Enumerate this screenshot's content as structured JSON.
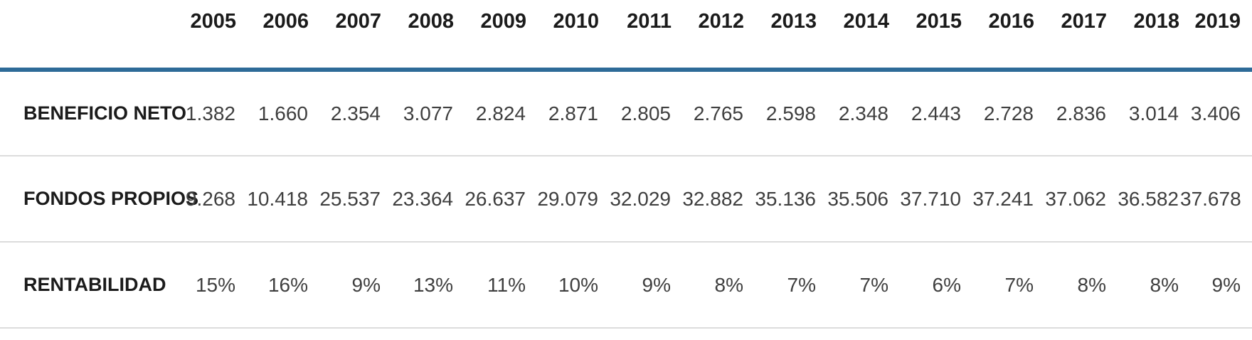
{
  "table": {
    "header": {
      "corner": "",
      "years": [
        "2005",
        "2006",
        "2007",
        "2008",
        "2009",
        "2010",
        "2011",
        "2012",
        "2013",
        "2014",
        "2015",
        "2016",
        "2017",
        "2018",
        "2019"
      ]
    },
    "rows": [
      {
        "label": "BENEFICIO NETO",
        "values": [
          "1.382",
          "1.660",
          "2.354",
          "3.077",
          "2.824",
          "2.871",
          "2.805",
          "2.765",
          "2.598",
          "2.348",
          "2.443",
          "2.728",
          "2.836",
          "3.014",
          "3.406"
        ]
      },
      {
        "label": "FONDOS PROPIOS",
        "values": [
          "9.268",
          "10.418",
          "25.537",
          "23.364",
          "26.637",
          "29.079",
          "32.029",
          "32.882",
          "35.136",
          "35.506",
          "37.710",
          "37.241",
          "37.062",
          "36.582",
          "37.678"
        ]
      },
      {
        "label": "RENTABILIDAD",
        "values": [
          "15%",
          "16%",
          "9%",
          "13%",
          "11%",
          "10%",
          "9%",
          "8%",
          "7%",
          "7%",
          "6%",
          "7%",
          "8%",
          "8%",
          "9%"
        ]
      }
    ]
  },
  "colors": {
    "accent_rule": "#2e6b98",
    "row_divider": "#dcdcdc",
    "header_text": "#1b1b1b",
    "value_text": "#3f3f3f",
    "background": "#ffffff"
  },
  "chart_data": {
    "type": "table",
    "title": "",
    "categories": [
      "2005",
      "2006",
      "2007",
      "2008",
      "2009",
      "2010",
      "2011",
      "2012",
      "2013",
      "2014",
      "2015",
      "2016",
      "2017",
      "2018",
      "2019"
    ],
    "series": [
      {
        "name": "BENEFICIO NETO",
        "values": [
          1382,
          1660,
          2354,
          3077,
          2824,
          2871,
          2805,
          2765,
          2598,
          2348,
          2443,
          2728,
          2836,
          3014,
          3406
        ]
      },
      {
        "name": "FONDOS PROPIOS",
        "values": [
          9268,
          10418,
          25537,
          23364,
          26637,
          29079,
          32029,
          32882,
          35136,
          35506,
          37710,
          37241,
          37062,
          36582,
          37678
        ]
      },
      {
        "name": "RENTABILIDAD (%)",
        "values": [
          15,
          16,
          9,
          13,
          11,
          10,
          9,
          8,
          7,
          7,
          6,
          7,
          8,
          8,
          9
        ]
      }
    ],
    "layout": {
      "header_rule_color": "#2e6b98",
      "grid": "horizontal-dividers",
      "number_format": "es-ES thousands with dot separator",
      "legend_position": "none"
    }
  }
}
